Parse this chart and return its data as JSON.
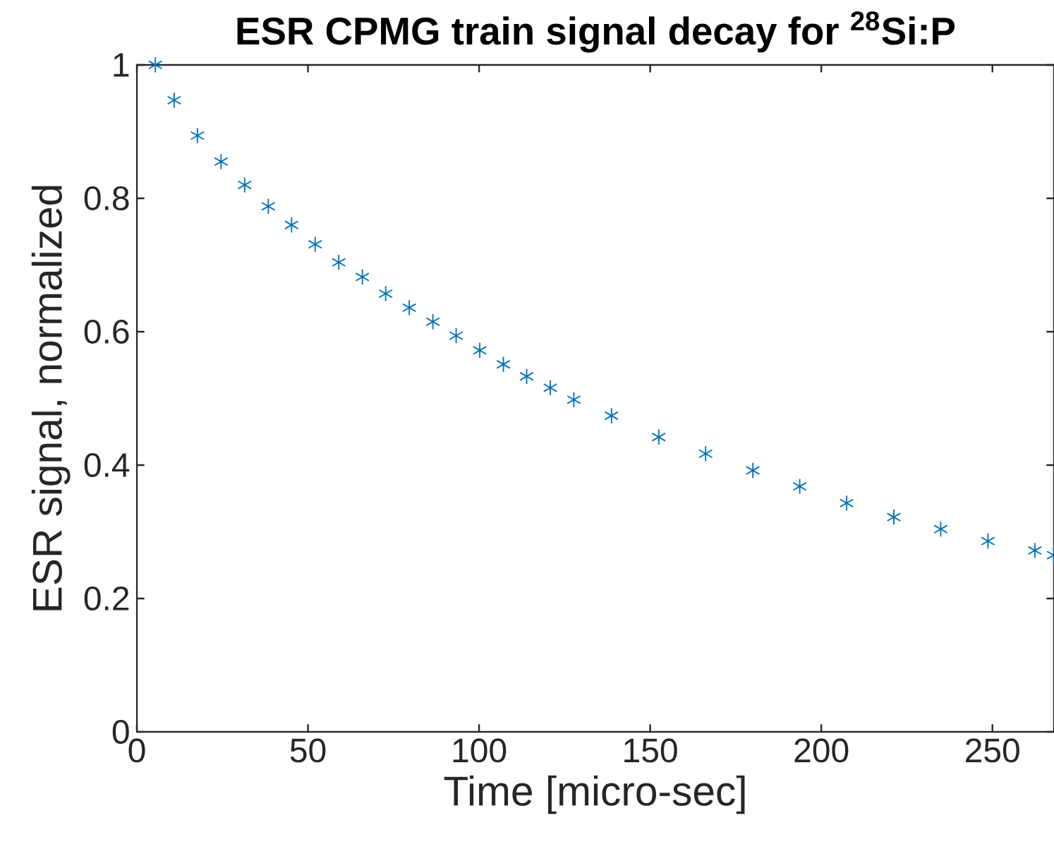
{
  "chart_data": {
    "type": "scatter",
    "title": "**ESR CPMG train signal decay for $^{28}$Si:P**",
    "xlabel": "Time [micro-sec]",
    "ylabel": "ESR signal, normalized",
    "xlim": [
      0,
      268
    ],
    "ylim": [
      0,
      1
    ],
    "xticks": [
      0,
      50,
      100,
      150,
      200,
      250
    ],
    "yticks": [
      0,
      0.2,
      0.4,
      0.6,
      0.8,
      1
    ],
    "grid": false,
    "marker": "cross",
    "series": [
      {
        "color": "#0072bd",
        "x": [
          5.4,
          10.9,
          17.7,
          24.6,
          31.5,
          38.4,
          45.2,
          52.1,
          59.0,
          65.9,
          72.7,
          79.6,
          86.5,
          93.3,
          100.2,
          107.1,
          113.9,
          120.8,
          127.7,
          138.7,
          152.5,
          166.2,
          180,
          193.7,
          207.4,
          221.2,
          234.9,
          248.7,
          262.4,
          267.9
        ],
        "values": [
          1.0,
          0.947,
          0.894,
          0.855,
          0.82,
          0.788,
          0.76,
          0.731,
          0.704,
          0.682,
          0.657,
          0.636,
          0.615,
          0.594,
          0.572,
          0.551,
          0.533,
          0.516,
          0.498,
          0.474,
          0.442,
          0.417,
          0.392,
          0.368,
          0.343,
          0.322,
          0.304,
          0.286,
          0.272,
          0.265
        ]
      }
    ]
  }
}
